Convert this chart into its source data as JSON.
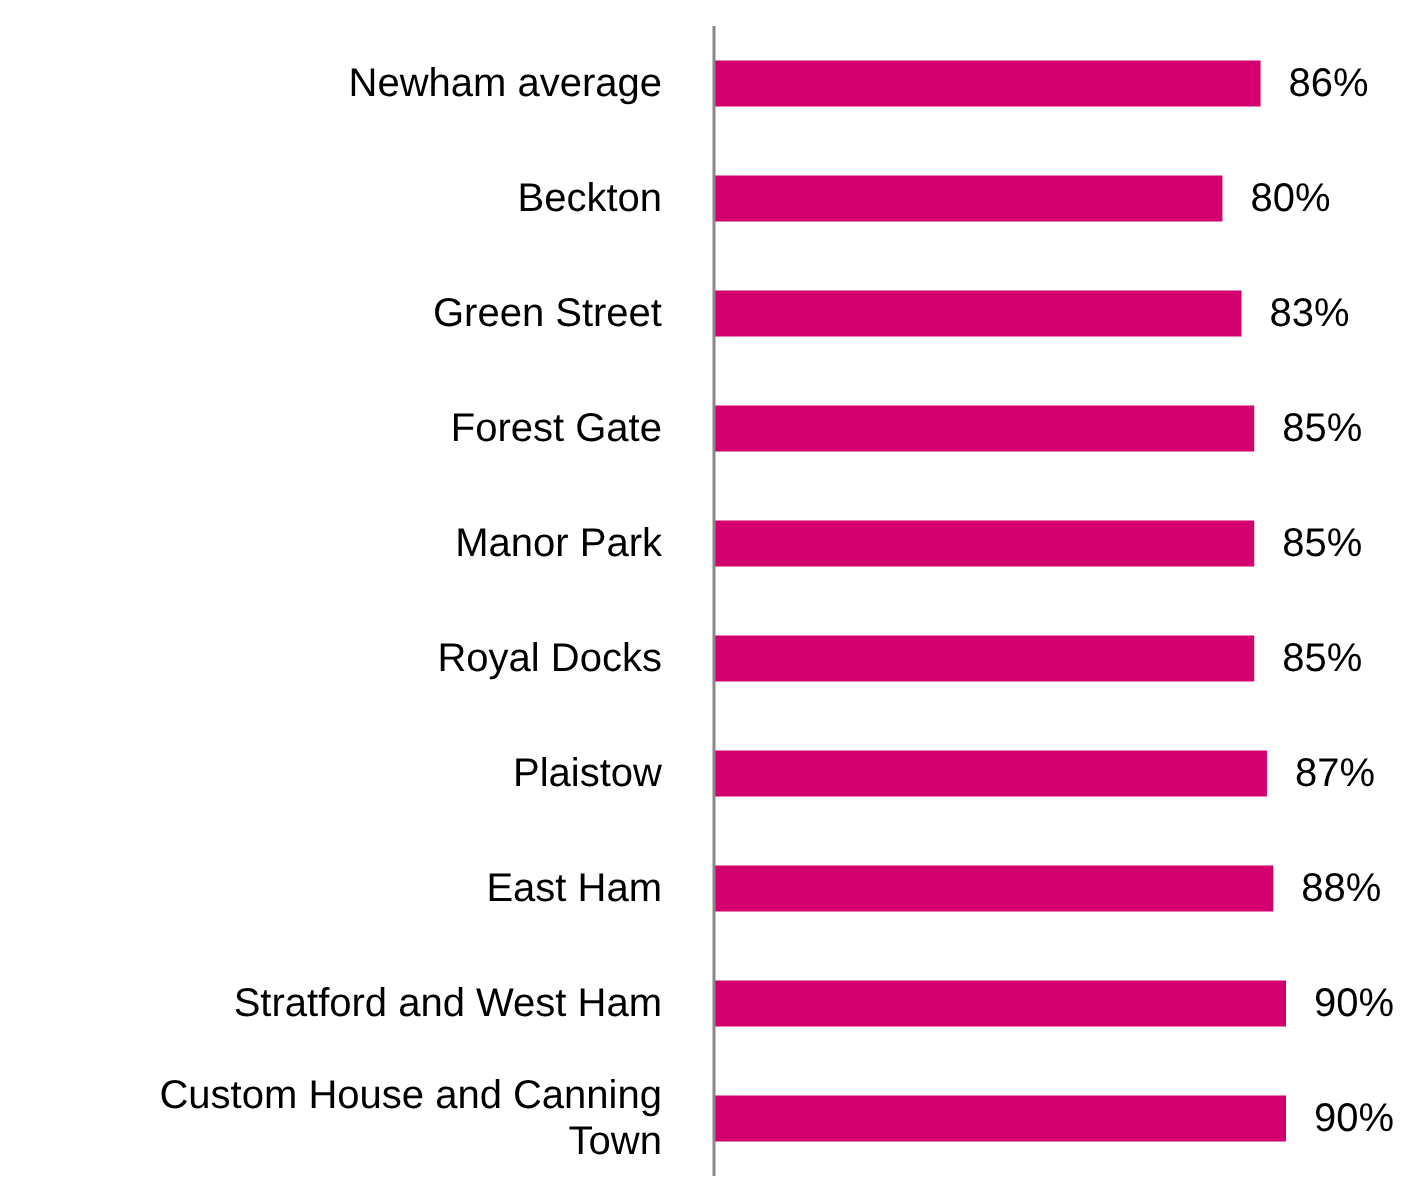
{
  "chart_data": {
    "type": "bar",
    "orientation": "horizontal",
    "categories": [
      "Newham average",
      "Beckton",
      "Green Street",
      "Forest Gate",
      "Manor Park",
      "Royal Docks",
      "Plaistow",
      "East Ham",
      "Stratford and West Ham",
      "Custom House and Canning Town"
    ],
    "values": [
      86,
      80,
      83,
      85,
      85,
      85,
      87,
      88,
      90,
      90
    ],
    "color": "#d4006f",
    "tick_labels": "y",
    "data_labels": true,
    "value_labels": [
      "86%",
      "80%",
      "83%",
      "85%",
      "85%",
      "85%",
      "87%",
      "88%",
      "90%",
      "90%"
    ],
    "grid": false,
    "legend": false
  }
}
